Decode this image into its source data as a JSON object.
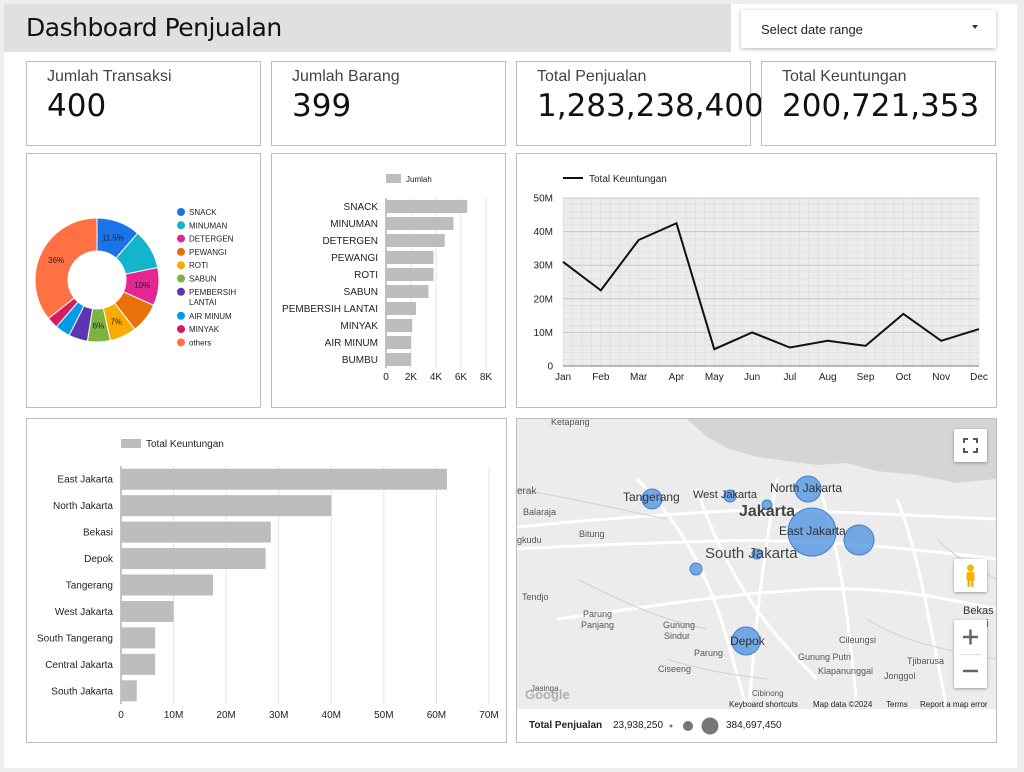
{
  "header": {
    "title": "Dashboard Penjualan"
  },
  "date_range": {
    "label": "Select date range"
  },
  "kpis": [
    {
      "label": "Jumlah Transaksi",
      "value": "400"
    },
    {
      "label": "Jumlah Barang",
      "value": "399"
    },
    {
      "label": "Total Penjualan",
      "value": "1,283,238,400"
    },
    {
      "label": "Total Keuntungan",
      "value": "200,721,353"
    }
  ],
  "colors": {
    "bar": "#bdbdbd",
    "line": "#111111",
    "bubble": "#4a90e2"
  },
  "chart_data": [
    {
      "type": "pie",
      "donut": true,
      "legend_position": "right",
      "labels": [
        "SNACK",
        "MINUMAN",
        "DETERGEN",
        "PEWANGI",
        "ROTI",
        "SABUN",
        "PEMBERSIH LANTAI",
        "AIR MINUM",
        "MINYAK",
        "others"
      ],
      "values": [
        11.5,
        10.5,
        10,
        8,
        7,
        6,
        5,
        4,
        3,
        36
      ],
      "data_labels": [
        "11.5%",
        "",
        "10%",
        "",
        "7%",
        "6%",
        "",
        "",
        "",
        "36%"
      ],
      "colors": [
        "#1a73e8",
        "#12b5cb",
        "#e52592",
        "#e8710a",
        "#f9ab00",
        "#7cb342",
        "#5e35b1",
        "#039be5",
        "#d81b60",
        "#ff7043"
      ]
    },
    {
      "type": "bar",
      "orientation": "horizontal",
      "legend": "Jumlah",
      "categories": [
        "SNACK",
        "MINUMAN",
        "DETERGEN",
        "PEWANGI",
        "ROTI",
        "SABUN",
        "PEMBERSIH LANTAI",
        "MINYAK",
        "AIR MINUM",
        "BUMBU"
      ],
      "values": [
        6500,
        5400,
        4700,
        3800,
        3800,
        3400,
        2400,
        2100,
        2000,
        2000
      ],
      "xlim": [
        0,
        8000
      ],
      "xticks": [
        0,
        2000,
        4000,
        6000,
        8000
      ],
      "xtick_labels": [
        "0",
        "2K",
        "4K",
        "6K",
        "8K"
      ],
      "grid": true
    },
    {
      "type": "line",
      "legend": "Total Keuntungan",
      "categories": [
        "Jan",
        "Feb",
        "Mar",
        "Apr",
        "May",
        "Jun",
        "Jul",
        "Aug",
        "Sep",
        "Oct",
        "Nov",
        "Dec"
      ],
      "values": [
        31000000,
        22500000,
        37500000,
        42500000,
        5000000,
        10000000,
        5500000,
        7500000,
        6000000,
        15500000,
        7500000,
        11000000
      ],
      "ylim": [
        0,
        50000000
      ],
      "yticks": [
        0,
        10000000,
        20000000,
        30000000,
        40000000,
        50000000
      ],
      "ytick_labels": [
        "0",
        "10M",
        "20M",
        "30M",
        "40M",
        "50M"
      ],
      "grid": true
    },
    {
      "type": "bar",
      "orientation": "horizontal",
      "legend": "Total Keuntungan",
      "categories": [
        "East Jakarta",
        "North Jakarta",
        "Bekasi",
        "Depok",
        "Tangerang",
        "West Jakarta",
        "South Tangerang",
        "Central Jakarta",
        "South Jakarta"
      ],
      "values": [
        62000000,
        40000000,
        28500000,
        27500000,
        17500000,
        10000000,
        6500000,
        6500000,
        3000000
      ],
      "xlim": [
        0,
        70000000
      ],
      "xticks": [
        0,
        10000000,
        20000000,
        30000000,
        40000000,
        50000000,
        60000000,
        70000000
      ],
      "xtick_labels": [
        "0",
        "10M",
        "20M",
        "30M",
        "40M",
        "50M",
        "60M",
        "70M"
      ],
      "grid": true
    }
  ],
  "map": {
    "labels": {
      "ketapang": "Ketapang",
      "erak": "erak",
      "balaraja": "Balaraja",
      "tangerang": "Tangerang",
      "west_jakarta": "West Jakarta",
      "north_jakarta": "North Jakarta",
      "jakarta": "Jakarta",
      "east_jakarta": "East Jakarta",
      "bitung": "Bitung",
      "gkudu": "gkudu",
      "south_jakarta": "South Jakarta",
      "tendjo": "Tendjo",
      "parung_panjang_1": "Parung",
      "parung_panjang_2": "Panjang",
      "gunung_sindur_1": "Gunung",
      "gunung_sindur_2": "Sindur",
      "depok": "Depok",
      "cileungsi": "Cileungsi",
      "parung": "Parung",
      "gunung_putri": "Gunung Putri",
      "klapanunggal": "Klapanunggal",
      "tjibarusa": "Tjibarusa",
      "jonggol": "Jonggol",
      "ciseeng": "Ciseeng",
      "jasinga": "Jasinga",
      "cibinong": "Cibinong",
      "bekasi_1": "Bekas",
      "bekasi_2": "i"
    },
    "logo": "Google",
    "attribution": {
      "shortcuts": "Keyboard shortcuts",
      "data": "Map data ©2024",
      "terms": "Terms",
      "report": "Report a map error"
    },
    "legend": {
      "label": "Total Penjualan",
      "min": "23,938,250",
      "max": "384,697,450"
    }
  }
}
